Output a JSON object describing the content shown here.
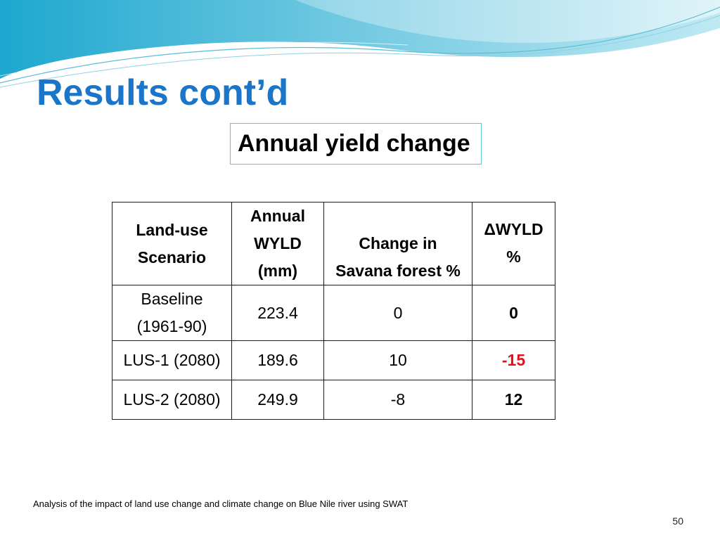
{
  "slide": {
    "title": "Results cont’d",
    "subtitle": "Annual yield change",
    "footnote": "Analysis of the impact of land use change and climate change on Blue Nile river using SWAT",
    "slide_number": "50"
  },
  "table": {
    "headers": [
      [
        "Land-use",
        "Scenario"
      ],
      [
        "Annual",
        "WYLD",
        "(mm)"
      ],
      [
        "Change in",
        "Savana forest %"
      ],
      [
        "ΔWYLD",
        "%"
      ]
    ],
    "rows": [
      {
        "scenario": [
          "Baseline",
          "(1961-90)"
        ],
        "wyld": "223.4",
        "forest_change": "0",
        "delta_wyld": "0"
      },
      {
        "scenario": [
          "LUS-1 (2080)"
        ],
        "wyld": "189.6",
        "forest_change": "10",
        "delta_wyld": "-15"
      },
      {
        "scenario": [
          "LUS-2 (2080)"
        ],
        "wyld": "249.9",
        "forest_change": "-8",
        "delta_wyld": "12"
      }
    ]
  },
  "colors": {
    "title": "#1b75c8",
    "negative_value": "#e4101a",
    "subtitle_border": "#5ec4d2",
    "wave_light": "#bfe6f0",
    "wave_mid": "#7fcde0",
    "wave_dark": "#2fa7c9"
  }
}
